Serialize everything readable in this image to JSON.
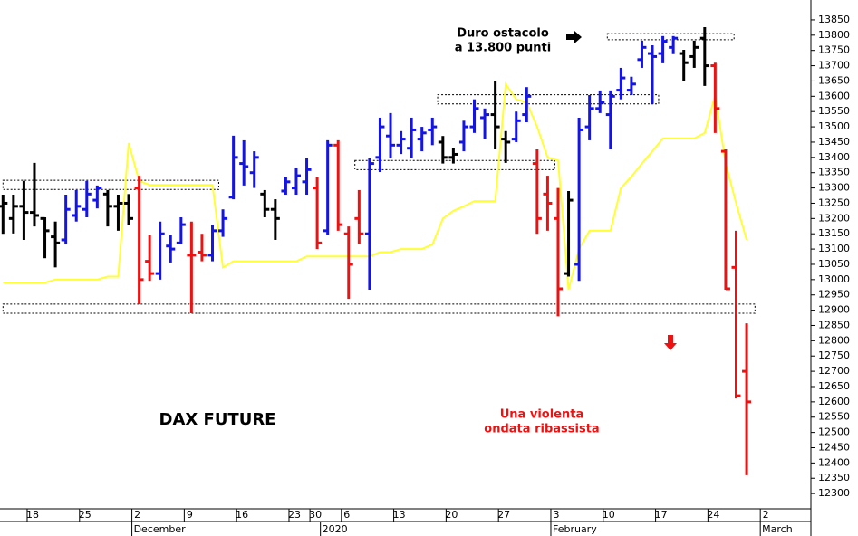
{
  "chart_data": {
    "type": "ohlc",
    "title": "DAX FUTURE",
    "annotations": [
      "Duro ostacolo",
      "a 13.800 punti",
      "Una violenta",
      "ondata ribassista"
    ],
    "categories": [
      null,
      null,
      null,
      "18",
      null,
      null,
      null,
      null,
      "25",
      null,
      null,
      null,
      null,
      "2",
      null,
      null,
      null,
      null,
      "9",
      null,
      null,
      null,
      null,
      "16",
      null,
      null,
      null,
      null,
      "23",
      null,
      "30",
      null,
      null,
      "6",
      null,
      null,
      null,
      null,
      "13",
      null,
      null,
      null,
      null,
      "20",
      null,
      null,
      null,
      null,
      "27",
      null,
      null,
      null,
      null,
      "3",
      null,
      null,
      null,
      null,
      "10",
      null,
      null,
      null,
      null,
      "17",
      null,
      null,
      null,
      null,
      "24",
      null,
      null,
      null,
      null,
      "2"
    ],
    "months": [
      null,
      null,
      null,
      null,
      null,
      null,
      null,
      null,
      null,
      null,
      null,
      null,
      null,
      "December",
      null,
      null,
      null,
      null,
      null,
      null,
      null,
      null,
      null,
      null,
      null,
      null,
      null,
      null,
      null,
      null,
      null,
      "2020",
      null,
      null,
      null,
      null,
      null,
      null,
      null,
      null,
      null,
      null,
      null,
      null,
      null,
      null,
      null,
      null,
      null,
      null,
      null,
      null,
      null,
      "February",
      null,
      null,
      null,
      null,
      null,
      null,
      null,
      null,
      null,
      null,
      null,
      null,
      null,
      null,
      null,
      null,
      null,
      null,
      null,
      "March"
    ],
    "open": [
      13240,
      13200,
      13240,
      13220,
      13200,
      13140,
      13130,
      13210,
      13230,
      13260,
      13280,
      13240,
      13250,
      13300,
      13060,
      13020,
      13110,
      13120,
      13080,
      13090,
      13080,
      13160,
      13270,
      13380,
      13350,
      13280,
      13230,
      13290,
      13300,
      13320,
      13300,
      13160,
      13440,
      13150,
      13200,
      13150,
      13400,
      13470,
      13440,
      13430,
      13460,
      13490,
      13450,
      13400,
      13450,
      13500,
      13530,
      13540,
      13460,
      13460,
      13540,
      13380,
      13280,
      13200,
      13020,
      13050,
      13500,
      13560,
      13540,
      13620,
      13620,
      13720,
      13740,
      13740,
      13760,
      13740,
      13730,
      13790,
      13700,
      13420,
      13040,
      12700,
      null,
      null
    ],
    "high": [
      13278,
      13278,
      13323,
      13382,
      13204,
      13190,
      13278,
      13293,
      13323,
      13308,
      13293,
      13278,
      13280,
      13340,
      13145,
      13190,
      13145,
      13204,
      13190,
      13150,
      13180,
      13230,
      13471,
      13456,
      13420,
      13293,
      13263,
      13337,
      13367,
      13397,
      13337,
      13456,
      13456,
      13174,
      13293,
      13397,
      13530,
      13545,
      13486,
      13530,
      13500,
      13530,
      13470,
      13430,
      13520,
      13590,
      13560,
      13649,
      13486,
      13550,
      13630,
      13426,
      13340,
      13300,
      13290,
      13530,
      13604,
      13619,
      13619,
      13693,
      13664,
      13782,
      13767,
      13797,
      13797,
      13752,
      13782,
      13826,
      13710,
      13426,
      13160,
      12857,
      null,
      null
    ],
    "low": [
      13150,
      13151,
      13130,
      13174,
      13070,
      13040,
      13115,
      13190,
      13204,
      13233,
      13174,
      13160,
      13180,
      12920,
      12996,
      13000,
      13056,
      13115,
      12890,
      13060,
      13060,
      13140,
      13263,
      13308,
      13300,
      13204,
      13130,
      13278,
      13278,
      13278,
      13100,
      13145,
      13160,
      12937,
      13115,
      12967,
      13352,
      13397,
      13411,
      13397,
      13420,
      13440,
      13380,
      13380,
      13420,
      13480,
      13460,
      13426,
      13382,
      13450,
      13515,
      13150,
      13160,
      12880,
      13010,
      12996,
      13456,
      13545,
      13426,
      13590,
      13604,
      13693,
      13575,
      13708,
      13738,
      13649,
      13693,
      13634,
      13480,
      12967,
      12611,
      12360,
      null,
      null
    ],
    "close": [
      13250,
      13240,
      13220,
      13210,
      13160,
      13120,
      13230,
      13240,
      13280,
      13300,
      13240,
      13250,
      13200,
      13000,
      13020,
      13150,
      13100,
      13180,
      13080,
      13080,
      13160,
      13200,
      13400,
      13370,
      13400,
      13230,
      13200,
      13320,
      13340,
      13360,
      13120,
      13440,
      13180,
      13050,
      13150,
      13380,
      13500,
      13440,
      13460,
      13490,
      13480,
      13500,
      13400,
      13410,
      13500,
      13560,
      13540,
      13500,
      13450,
      13520,
      13600,
      13200,
      13250,
      12970,
      13260,
      13490,
      13560,
      13580,
      13600,
      13660,
      13640,
      13760,
      13730,
      13780,
      13790,
      13710,
      13760,
      13700,
      13560,
      12970,
      12620,
      12600,
      null,
      null
    ],
    "colors": [
      "#000000",
      "#000000",
      "#000000",
      "#000000",
      "#000000",
      "#000000",
      "#1414e6",
      "#1414e6",
      "#1414e6",
      "#1414e6",
      "#000000",
      "#000000",
      "#000000",
      "#ee1111",
      "#ee1111",
      "#1414e6",
      "#1414e6",
      "#1414e6",
      "#ee1111",
      "#ee1111",
      "#1414e6",
      "#1414e6",
      "#1414e6",
      "#1414e6",
      "#1414e6",
      "#000000",
      "#000000",
      "#1414e6",
      "#1414e6",
      "#1414e6",
      "#ee1111",
      "#1414e6",
      "#ee1111",
      "#ee1111",
      "#ee1111",
      "#1414e6",
      "#1414e6",
      "#1414e6",
      "#1414e6",
      "#1414e6",
      "#1414e6",
      "#1414e6",
      "#000000",
      "#000000",
      "#1414e6",
      "#1414e6",
      "#1414e6",
      "#000000",
      "#000000",
      "#1414e6",
      "#1414e6",
      "#ee1111",
      "#ee1111",
      "#ee1111",
      "#000000",
      "#1414e6",
      "#1414e6",
      "#1414e6",
      "#1414e6",
      "#1414e6",
      "#1414e6",
      "#1414e6",
      "#1414e6",
      "#1414e6",
      "#1414e6",
      "#000000",
      "#000000",
      "#000000",
      "#ee1111",
      "#ee1111",
      "#ee1111",
      "#ee1111",
      null,
      null
    ],
    "stop_line": {
      "color": "#ffff33",
      "values": [
        12990,
        12990,
        12990,
        12990,
        12990,
        13000,
        13000,
        13000,
        13000,
        13000,
        13010,
        13010,
        13447,
        13323,
        13310,
        13310,
        13310,
        13310,
        13310,
        13310,
        13310,
        13040,
        13060,
        13060,
        13060,
        13060,
        13060,
        13060,
        13060,
        13076,
        13076,
        13076,
        13076,
        13076,
        13076,
        13076,
        13090,
        13090,
        13100,
        13100,
        13100,
        13115,
        13200,
        13225,
        13240,
        13257,
        13257,
        13257,
        13640,
        13590,
        13580,
        13500,
        13400,
        13390,
        12967,
        13100,
        13160,
        13160,
        13160,
        13300,
        13337,
        13380,
        13420,
        13462,
        13462,
        13462,
        13462,
        13480,
        13604,
        13380,
        13250,
        13130,
        null,
        null
      ]
    },
    "zones": [
      {
        "start": 0,
        "end": 20.6,
        "low": 13295,
        "high": 13325
      },
      {
        "start": 0,
        "end": 71.8,
        "low": 12890,
        "high": 12920
      },
      {
        "start": 33.6,
        "end": 52.7,
        "low": 13360,
        "high": 13390
      },
      {
        "start": 41.5,
        "end": 62.6,
        "low": 13575,
        "high": 13605
      },
      {
        "start": 57.7,
        "end": 69.8,
        "low": 13785,
        "high": 13805
      }
    ],
    "ylim": [
      12250,
      13915
    ],
    "yticks": [
      12300,
      12350,
      12400,
      12450,
      12500,
      12550,
      12600,
      12650,
      12700,
      12750,
      12800,
      12850,
      12900,
      12950,
      13000,
      13050,
      13100,
      13150,
      13200,
      13250,
      13300,
      13350,
      13400,
      13450,
      13500,
      13550,
      13600,
      13650,
      13700,
      13750,
      13800,
      13850
    ]
  }
}
